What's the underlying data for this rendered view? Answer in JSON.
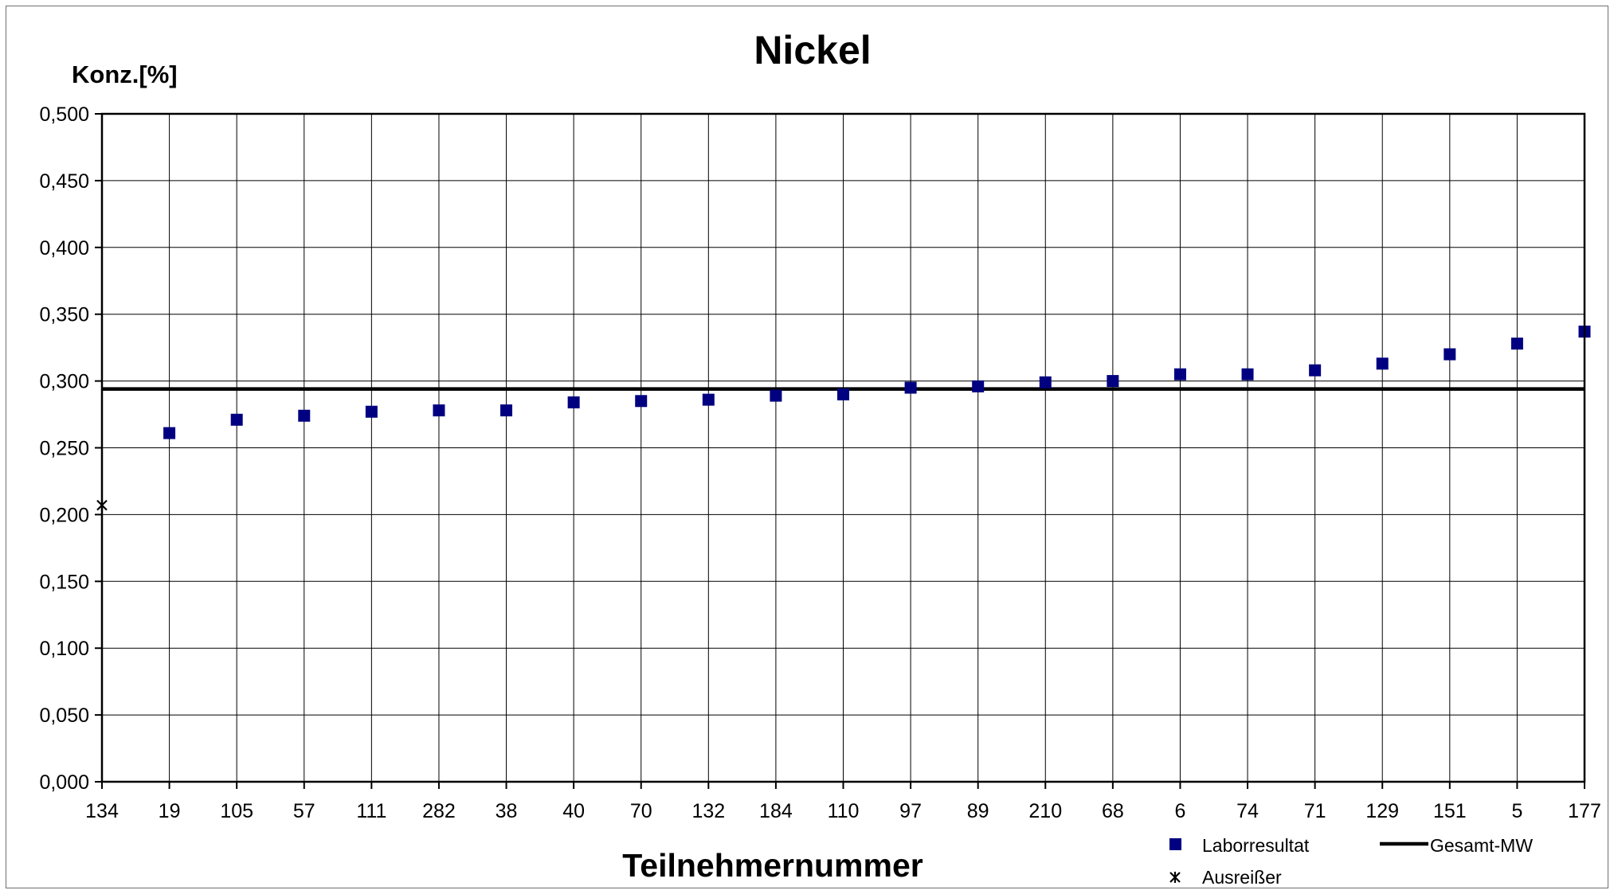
{
  "chart_data": {
    "type": "scatter",
    "title": "Nickel",
    "ylabel": "Konz.[%]",
    "xlabel": "Teilnehmernummer",
    "categories": [
      "134",
      "19",
      "105",
      "57",
      "111",
      "282",
      "38",
      "40",
      "70",
      "132",
      "184",
      "110",
      "97",
      "89",
      "210",
      "68",
      "6",
      "74",
      "71",
      "129",
      "151",
      "5",
      "177"
    ],
    "ylim": [
      0,
      0.5
    ],
    "ytick_step": 0.05,
    "ytick_labels": [
      "0,000",
      "0,050",
      "0,100",
      "0,150",
      "0,200",
      "0,250",
      "0,300",
      "0,350",
      "0,400",
      "0,450",
      "0,500"
    ],
    "grid": true,
    "legend_position": "bottom-right",
    "series": [
      {
        "name": "Laborresultat",
        "marker": "square",
        "color": "#000080",
        "values": [
          null,
          0.261,
          0.271,
          0.274,
          0.277,
          0.278,
          0.278,
          0.284,
          0.285,
          0.286,
          0.289,
          0.29,
          0.295,
          0.296,
          0.299,
          0.3,
          0.305,
          0.305,
          0.308,
          0.313,
          0.32,
          0.328,
          0.337
        ]
      },
      {
        "name": "Ausreißer",
        "marker": "asterisk",
        "color": "#000000",
        "values": [
          0.207,
          null,
          null,
          null,
          null,
          null,
          null,
          null,
          null,
          null,
          null,
          null,
          null,
          null,
          null,
          null,
          null,
          null,
          null,
          null,
          null,
          null,
          null
        ]
      },
      {
        "name": "Gesamt-MW",
        "marker": "line",
        "color": "#000000",
        "value": 0.294
      }
    ]
  }
}
